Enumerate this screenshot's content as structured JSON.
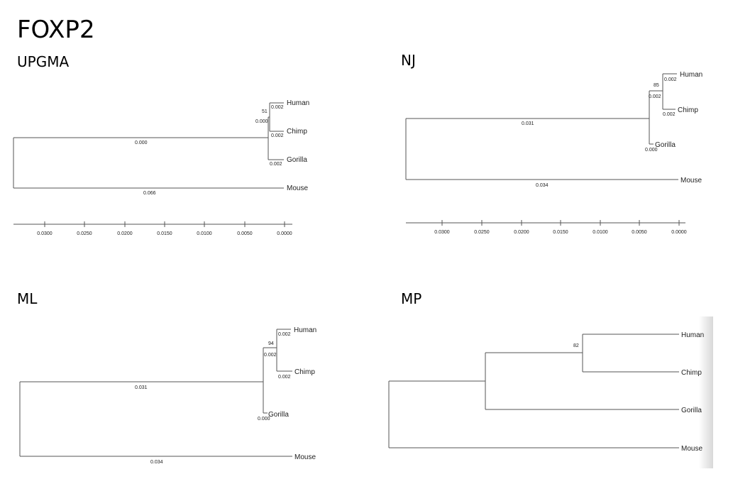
{
  "title": "FOXP2",
  "panels": [
    {
      "name": "UPGMA",
      "taxa": [
        "Human",
        "Chimp",
        "Gorilla",
        "Mouse"
      ],
      "branch_lengths": [
        "0.002",
        "0.002",
        "0.000",
        "0.002",
        "0.000",
        "0.066"
      ],
      "bootstrap": [
        "51"
      ],
      "scale_ticks": [
        "0.0300",
        "0.0250",
        "0.0200",
        "0.0150",
        "0.0100",
        "0.0050",
        "0.0000"
      ]
    },
    {
      "name": "NJ",
      "taxa": [
        "Human",
        "Chimp",
        "Gorilla",
        "Mouse"
      ],
      "branch_lengths": [
        "0.002",
        "0.002",
        "0.002",
        "0.000",
        "0.031",
        "0.034"
      ],
      "bootstrap": [
        "85"
      ],
      "scale_ticks": [
        "0.0300",
        "0.0250",
        "0.0200",
        "0.0150",
        "0.0100",
        "0.0050",
        "0.0000"
      ]
    },
    {
      "name": "ML",
      "taxa": [
        "Human",
        "Chimp",
        "Gorilla",
        "Mouse"
      ],
      "branch_lengths": [
        "0.002",
        "0.002",
        "0.002",
        "0.000",
        "0.031",
        "0.034"
      ],
      "bootstrap": [
        "94"
      ]
    },
    {
      "name": "MP",
      "taxa": [
        "Human",
        "Chimp",
        "Gorilla",
        "Mouse"
      ],
      "bootstrap": [
        "82"
      ]
    }
  ]
}
